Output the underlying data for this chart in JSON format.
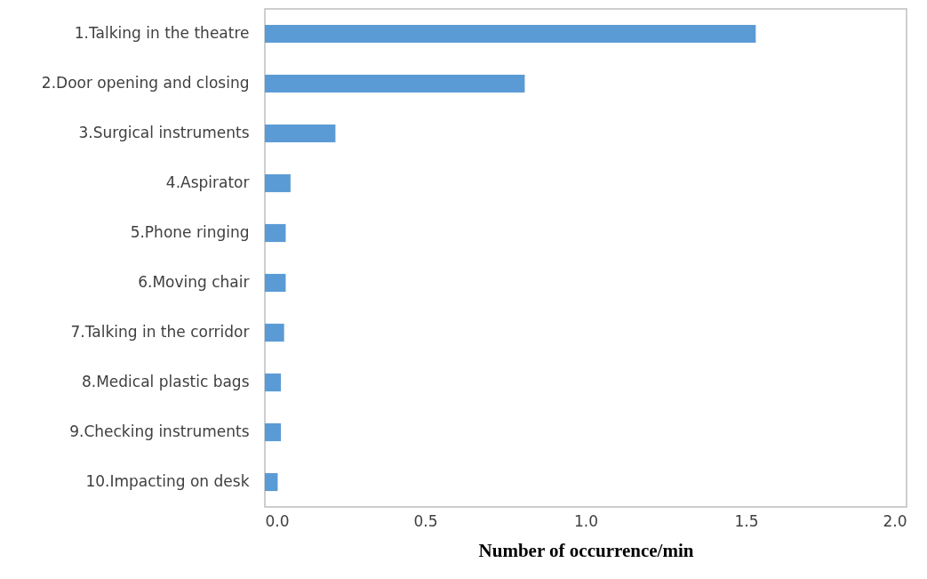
{
  "chart_data": {
    "type": "bar",
    "orientation": "horizontal",
    "xlabel": "Number of occurrence/min",
    "categories": [
      "1.Talking in the theatre",
      "2.Door opening and closing",
      "3.Surgical instruments",
      "4.Aspirator",
      "5.Phone ringing",
      "6.Moving chair",
      "7.Talking in the corridor",
      "8.Medical plastic bags",
      "9.Checking instruments",
      "10.Impacting on desk"
    ],
    "values": [
      1.53,
      0.81,
      0.22,
      0.08,
      0.065,
      0.065,
      0.06,
      0.05,
      0.05,
      0.04
    ],
    "color": "#5b9bd5",
    "xlim": [
      0,
      2
    ],
    "xticks": [
      {
        "value": 0,
        "label": "0.0"
      },
      {
        "value": 0.5,
        "label": "0.5"
      },
      {
        "value": 1,
        "label": "1.0"
      },
      {
        "value": 1.5,
        "label": "1.5"
      },
      {
        "value": 2,
        "label": "2.0"
      }
    ],
    "grid": false
  }
}
